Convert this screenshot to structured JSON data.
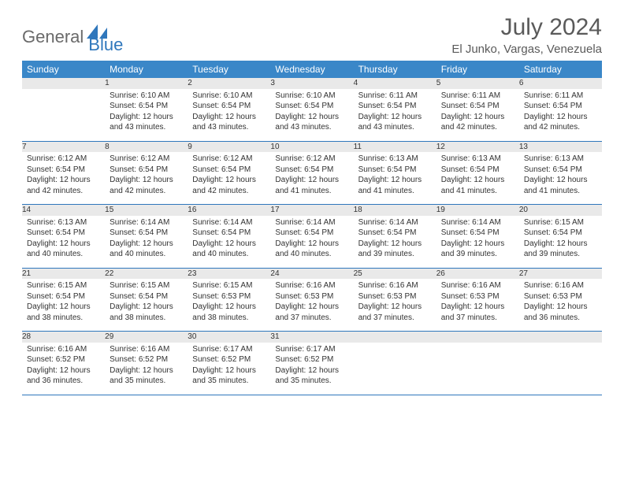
{
  "brand": {
    "text1": "General",
    "text2": "Blue",
    "color_general": "#6a6a6a",
    "color_blue": "#2f77bc"
  },
  "title": "July 2024",
  "location": "El Junko, Vargas, Venezuela",
  "header_bg": "#3a87c8",
  "daynum_bg": "#e9e9e9",
  "row_border": "#2f77bc",
  "weekdays": [
    "Sunday",
    "Monday",
    "Tuesday",
    "Wednesday",
    "Thursday",
    "Friday",
    "Saturday"
  ],
  "weeks": [
    [
      null,
      {
        "n": "1",
        "sr": "Sunrise: 6:10 AM",
        "ss": "Sunset: 6:54 PM",
        "d1": "Daylight: 12 hours",
        "d2": "and 43 minutes."
      },
      {
        "n": "2",
        "sr": "Sunrise: 6:10 AM",
        "ss": "Sunset: 6:54 PM",
        "d1": "Daylight: 12 hours",
        "d2": "and 43 minutes."
      },
      {
        "n": "3",
        "sr": "Sunrise: 6:10 AM",
        "ss": "Sunset: 6:54 PM",
        "d1": "Daylight: 12 hours",
        "d2": "and 43 minutes."
      },
      {
        "n": "4",
        "sr": "Sunrise: 6:11 AM",
        "ss": "Sunset: 6:54 PM",
        "d1": "Daylight: 12 hours",
        "d2": "and 43 minutes."
      },
      {
        "n": "5",
        "sr": "Sunrise: 6:11 AM",
        "ss": "Sunset: 6:54 PM",
        "d1": "Daylight: 12 hours",
        "d2": "and 42 minutes."
      },
      {
        "n": "6",
        "sr": "Sunrise: 6:11 AM",
        "ss": "Sunset: 6:54 PM",
        "d1": "Daylight: 12 hours",
        "d2": "and 42 minutes."
      }
    ],
    [
      {
        "n": "7",
        "sr": "Sunrise: 6:12 AM",
        "ss": "Sunset: 6:54 PM",
        "d1": "Daylight: 12 hours",
        "d2": "and 42 minutes."
      },
      {
        "n": "8",
        "sr": "Sunrise: 6:12 AM",
        "ss": "Sunset: 6:54 PM",
        "d1": "Daylight: 12 hours",
        "d2": "and 42 minutes."
      },
      {
        "n": "9",
        "sr": "Sunrise: 6:12 AM",
        "ss": "Sunset: 6:54 PM",
        "d1": "Daylight: 12 hours",
        "d2": "and 42 minutes."
      },
      {
        "n": "10",
        "sr": "Sunrise: 6:12 AM",
        "ss": "Sunset: 6:54 PM",
        "d1": "Daylight: 12 hours",
        "d2": "and 41 minutes."
      },
      {
        "n": "11",
        "sr": "Sunrise: 6:13 AM",
        "ss": "Sunset: 6:54 PM",
        "d1": "Daylight: 12 hours",
        "d2": "and 41 minutes."
      },
      {
        "n": "12",
        "sr": "Sunrise: 6:13 AM",
        "ss": "Sunset: 6:54 PM",
        "d1": "Daylight: 12 hours",
        "d2": "and 41 minutes."
      },
      {
        "n": "13",
        "sr": "Sunrise: 6:13 AM",
        "ss": "Sunset: 6:54 PM",
        "d1": "Daylight: 12 hours",
        "d2": "and 41 minutes."
      }
    ],
    [
      {
        "n": "14",
        "sr": "Sunrise: 6:13 AM",
        "ss": "Sunset: 6:54 PM",
        "d1": "Daylight: 12 hours",
        "d2": "and 40 minutes."
      },
      {
        "n": "15",
        "sr": "Sunrise: 6:14 AM",
        "ss": "Sunset: 6:54 PM",
        "d1": "Daylight: 12 hours",
        "d2": "and 40 minutes."
      },
      {
        "n": "16",
        "sr": "Sunrise: 6:14 AM",
        "ss": "Sunset: 6:54 PM",
        "d1": "Daylight: 12 hours",
        "d2": "and 40 minutes."
      },
      {
        "n": "17",
        "sr": "Sunrise: 6:14 AM",
        "ss": "Sunset: 6:54 PM",
        "d1": "Daylight: 12 hours",
        "d2": "and 40 minutes."
      },
      {
        "n": "18",
        "sr": "Sunrise: 6:14 AM",
        "ss": "Sunset: 6:54 PM",
        "d1": "Daylight: 12 hours",
        "d2": "and 39 minutes."
      },
      {
        "n": "19",
        "sr": "Sunrise: 6:14 AM",
        "ss": "Sunset: 6:54 PM",
        "d1": "Daylight: 12 hours",
        "d2": "and 39 minutes."
      },
      {
        "n": "20",
        "sr": "Sunrise: 6:15 AM",
        "ss": "Sunset: 6:54 PM",
        "d1": "Daylight: 12 hours",
        "d2": "and 39 minutes."
      }
    ],
    [
      {
        "n": "21",
        "sr": "Sunrise: 6:15 AM",
        "ss": "Sunset: 6:54 PM",
        "d1": "Daylight: 12 hours",
        "d2": "and 38 minutes."
      },
      {
        "n": "22",
        "sr": "Sunrise: 6:15 AM",
        "ss": "Sunset: 6:54 PM",
        "d1": "Daylight: 12 hours",
        "d2": "and 38 minutes."
      },
      {
        "n": "23",
        "sr": "Sunrise: 6:15 AM",
        "ss": "Sunset: 6:53 PM",
        "d1": "Daylight: 12 hours",
        "d2": "and 38 minutes."
      },
      {
        "n": "24",
        "sr": "Sunrise: 6:16 AM",
        "ss": "Sunset: 6:53 PM",
        "d1": "Daylight: 12 hours",
        "d2": "and 37 minutes."
      },
      {
        "n": "25",
        "sr": "Sunrise: 6:16 AM",
        "ss": "Sunset: 6:53 PM",
        "d1": "Daylight: 12 hours",
        "d2": "and 37 minutes."
      },
      {
        "n": "26",
        "sr": "Sunrise: 6:16 AM",
        "ss": "Sunset: 6:53 PM",
        "d1": "Daylight: 12 hours",
        "d2": "and 37 minutes."
      },
      {
        "n": "27",
        "sr": "Sunrise: 6:16 AM",
        "ss": "Sunset: 6:53 PM",
        "d1": "Daylight: 12 hours",
        "d2": "and 36 minutes."
      }
    ],
    [
      {
        "n": "28",
        "sr": "Sunrise: 6:16 AM",
        "ss": "Sunset: 6:52 PM",
        "d1": "Daylight: 12 hours",
        "d2": "and 36 minutes."
      },
      {
        "n": "29",
        "sr": "Sunrise: 6:16 AM",
        "ss": "Sunset: 6:52 PM",
        "d1": "Daylight: 12 hours",
        "d2": "and 35 minutes."
      },
      {
        "n": "30",
        "sr": "Sunrise: 6:17 AM",
        "ss": "Sunset: 6:52 PM",
        "d1": "Daylight: 12 hours",
        "d2": "and 35 minutes."
      },
      {
        "n": "31",
        "sr": "Sunrise: 6:17 AM",
        "ss": "Sunset: 6:52 PM",
        "d1": "Daylight: 12 hours",
        "d2": "and 35 minutes."
      },
      null,
      null,
      null
    ]
  ]
}
